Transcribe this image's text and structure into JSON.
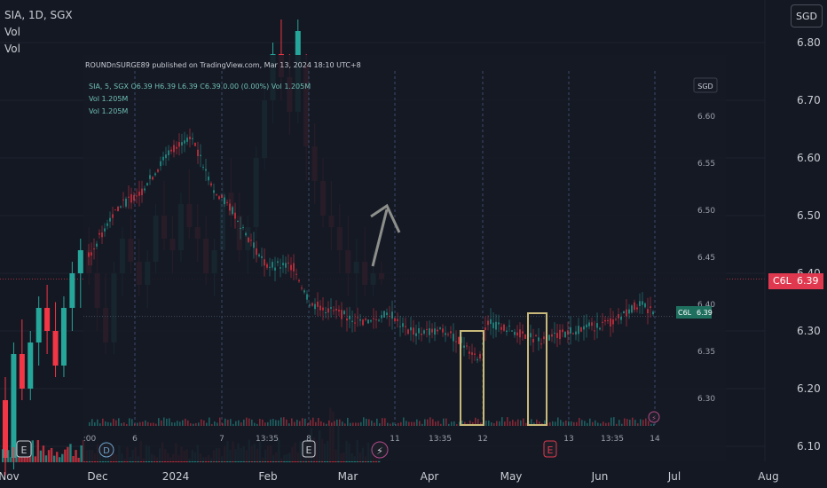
{
  "header": {
    "symbol_line": "SIA, 1D, SGX",
    "vol1": "Vol",
    "vol2": "Vol",
    "currency_button": "SGD"
  },
  "price_label": {
    "ticker": "C6L",
    "value": "6.39"
  },
  "colors": {
    "background": "#141822",
    "up": "#26a69a",
    "down": "#f23645",
    "accent_red": "#e0394f",
    "annotation_box": "#c8b97a",
    "arrow": "#8c8f8a"
  },
  "inset": {
    "caption": "ROUNDnSURGE89 published on TradingView.com, Mar 13, 2024 18:10 UTC+8",
    "legend_line": "SIA, 5, SGX  O6.39  H6.39  L6.39  C6.39  0.00 (0.00%)  Vol 1.205M",
    "vol1": "Vol  1.205M",
    "vol2": "Vol  1.205M",
    "currency": "SGD",
    "price_tag_ticker": "C6L",
    "price_tag_value": "6.39"
  },
  "chart_data": {
    "type": "candlestick",
    "main": {
      "title": "SIA, 1D, SGX",
      "y_ticks": [
        "6.80",
        "6.70",
        "6.60",
        "6.50",
        "6.40",
        "6.30",
        "6.20",
        "6.10"
      ],
      "x_ticks": [
        "Nov",
        "Dec",
        "2024",
        "Feb",
        "Mar",
        "Apr",
        "May",
        "Jun",
        "Jul",
        "Aug"
      ],
      "last_price": 6.39,
      "ylim": [
        6.08,
        6.84
      ],
      "candles_approx": [
        [
          "2023-11-01",
          6.18,
          6.22,
          6.05,
          6.08
        ],
        [
          "2023-11-03",
          6.08,
          6.28,
          6.06,
          6.26
        ],
        [
          "2023-11-07",
          6.26,
          6.32,
          6.18,
          6.2
        ],
        [
          "2023-11-09",
          6.2,
          6.3,
          6.18,
          6.28
        ],
        [
          "2023-11-13",
          6.28,
          6.36,
          6.24,
          6.34
        ],
        [
          "2023-11-15",
          6.34,
          6.38,
          6.26,
          6.3
        ],
        [
          "2023-11-17",
          6.3,
          6.35,
          6.22,
          6.24
        ],
        [
          "2023-11-21",
          6.24,
          6.36,
          6.22,
          6.34
        ],
        [
          "2023-11-23",
          6.34,
          6.42,
          6.3,
          6.4
        ],
        [
          "2023-11-27",
          6.4,
          6.46,
          6.34,
          6.44
        ],
        [
          "2023-11-29",
          6.44,
          6.48,
          6.38,
          6.4
        ],
        [
          "2023-12-01",
          6.4,
          6.44,
          6.3,
          6.34
        ],
        [
          "2023-12-05",
          6.34,
          6.4,
          6.26,
          6.28
        ],
        [
          "2023-12-07",
          6.28,
          6.42,
          6.26,
          6.4
        ],
        [
          "2023-12-11",
          6.4,
          6.48,
          6.36,
          6.46
        ],
        [
          "2023-12-13",
          6.46,
          6.5,
          6.4,
          6.42
        ],
        [
          "2023-12-15",
          6.42,
          6.46,
          6.36,
          6.38
        ],
        [
          "2023-12-19",
          6.38,
          6.44,
          6.34,
          6.42
        ],
        [
          "2023-12-21",
          6.42,
          6.52,
          6.4,
          6.5
        ],
        [
          "2023-12-27",
          6.5,
          6.56,
          6.44,
          6.46
        ],
        [
          "2024-01-02",
          6.46,
          6.5,
          6.4,
          6.44
        ],
        [
          "2024-01-04",
          6.44,
          6.54,
          6.42,
          6.52
        ],
        [
          "2024-01-08",
          6.52,
          6.58,
          6.46,
          6.48
        ],
        [
          "2024-01-10",
          6.48,
          6.52,
          6.42,
          6.46
        ],
        [
          "2024-01-12",
          6.46,
          6.5,
          6.38,
          6.4
        ],
        [
          "2024-01-16",
          6.4,
          6.46,
          6.36,
          6.44
        ],
        [
          "2024-01-18",
          6.44,
          6.56,
          6.42,
          6.54
        ],
        [
          "2024-01-22",
          6.54,
          6.6,
          6.48,
          6.5
        ],
        [
          "2024-01-24",
          6.5,
          6.54,
          6.42,
          6.44
        ],
        [
          "2024-01-26",
          6.44,
          6.5,
          6.4,
          6.48
        ],
        [
          "2024-01-30",
          6.48,
          6.62,
          6.46,
          6.6
        ],
        [
          "2024-02-01",
          6.6,
          6.72,
          6.58,
          6.7
        ],
        [
          "2024-02-05",
          6.7,
          6.8,
          6.66,
          6.78
        ],
        [
          "2024-02-07",
          6.78,
          6.84,
          6.7,
          6.74
        ],
        [
          "2024-02-09",
          6.74,
          6.78,
          6.64,
          6.68
        ],
        [
          "2024-02-13",
          6.68,
          6.84,
          6.66,
          6.82
        ],
        [
          "2024-02-16",
          6.76,
          6.78,
          6.56,
          6.62
        ],
        [
          "2024-02-20",
          6.62,
          6.66,
          6.52,
          6.56
        ],
        [
          "2024-02-22",
          6.56,
          6.6,
          6.48,
          6.5
        ],
        [
          "2024-02-26",
          6.5,
          6.56,
          6.44,
          6.48
        ],
        [
          "2024-02-28",
          6.48,
          6.52,
          6.4,
          6.44
        ],
        [
          "2024-03-01",
          6.44,
          6.5,
          6.36,
          6.4
        ],
        [
          "2024-03-05",
          6.4,
          6.46,
          6.34,
          6.42
        ],
        [
          "2024-03-07",
          6.42,
          6.48,
          6.36,
          6.38
        ],
        [
          "2024-03-11",
          6.38,
          6.44,
          6.36,
          6.4
        ],
        [
          "2024-03-13",
          6.4,
          6.42,
          6.38,
          6.39
        ]
      ]
    },
    "inset": {
      "title": "SIA, 5, SGX",
      "interval": "5",
      "y_ticks": [
        "6.60",
        "6.55",
        "6.50",
        "6.45",
        "6.40",
        "6.35",
        "6.30"
      ],
      "x_ticks": [
        ":00",
        "6",
        "7",
        "13:35",
        "8",
        "11",
        "13:35",
        "12",
        "13",
        "13:35",
        "14"
      ],
      "open": 6.39,
      "high": 6.39,
      "low": 6.39,
      "close": 6.39,
      "change": "0.00 (0.00%)",
      "volume": "1.205M",
      "last_price": 6.39,
      "ylim": [
        6.28,
        6.64
      ]
    }
  }
}
